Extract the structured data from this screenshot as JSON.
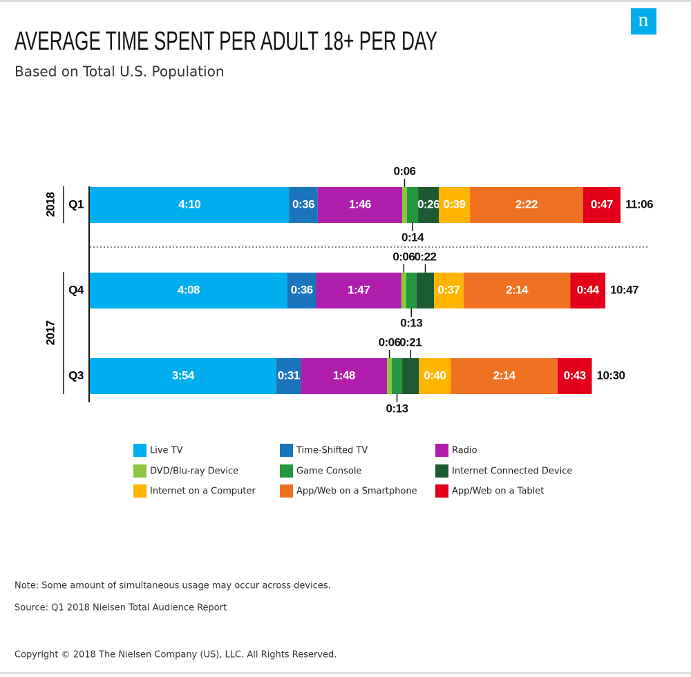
{
  "chart_data": {
    "type": "stacked-bar",
    "title": "AVERAGE TIME SPENT PER ADULT 18+ PER DAY",
    "subtitle": "Based on Total U.S. Population",
    "logo": "n",
    "categories": [
      "Q1",
      "Q4",
      "Q3"
    ],
    "groups": [
      {
        "label": "2018",
        "rows": [
          0,
          0
        ]
      },
      {
        "label": "2017",
        "rows": [
          1,
          2
        ]
      }
    ],
    "series": [
      {
        "name": "Live TV",
        "color": "#00aeef",
        "values": [
          250,
          248,
          234
        ],
        "value_labels": [
          "4:10",
          "4:08",
          "3:54"
        ]
      },
      {
        "name": "Time-Shifted TV",
        "color": "#1b75bc",
        "values": [
          36,
          36,
          31
        ],
        "value_labels": [
          "0:36",
          "0:36",
          "0:31"
        ]
      },
      {
        "name": "Radio",
        "color": "#b01fab",
        "values": [
          106,
          107,
          108
        ],
        "value_labels": [
          "1:46",
          "1:47",
          "1:48"
        ]
      },
      {
        "name": "DVD/Blu-ray Device",
        "color": "#8dc63f",
        "values": [
          6,
          6,
          6
        ],
        "value_labels": [
          "0:06",
          "0:06",
          "0:06"
        ]
      },
      {
        "name": "Game Console",
        "color": "#24963e",
        "values": [
          14,
          13,
          13
        ],
        "value_labels": [
          "0:14",
          "0:13",
          "0:13"
        ]
      },
      {
        "name": "Internet Connected Device",
        "color": "#1d5a32",
        "values": [
          26,
          22,
          21
        ],
        "value_labels": [
          "0:26",
          "0:22",
          "0:21"
        ]
      },
      {
        "name": "Internet on a Computer",
        "color": "#ffb400",
        "values": [
          39,
          37,
          40
        ],
        "value_labels": [
          "0:39",
          "0:37",
          "0:40"
        ]
      },
      {
        "name": "App/Web on a Smartphone",
        "color": "#f07122",
        "values": [
          142,
          134,
          134
        ],
        "value_labels": [
          "2:22",
          "2:14",
          "2:14"
        ]
      },
      {
        "name": "App/Web on a Tablet",
        "color": "#e3001b",
        "values": [
          47,
          44,
          43
        ],
        "value_labels": [
          "0:47",
          "0:44",
          "0:43"
        ]
      }
    ],
    "totals": [
      666,
      647,
      630
    ],
    "total_labels": [
      "11:06",
      "10:47",
      "10:30"
    ]
  },
  "notes": [
    "Note:  Some amount of simultaneous usage may occur across devices.",
    "Source: Q1 2018 Nielsen Total Audience Report"
  ],
  "copyright": "Copyright © 2018 The Nielsen Company (US), LLC. All Rights Reserved."
}
